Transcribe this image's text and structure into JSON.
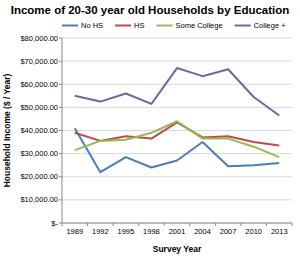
{
  "chart_data": {
    "type": "line",
    "title": "Income of 20-30 year old Households by Education",
    "x_label": "Survey Year",
    "y_label": "Household Income ($ / Year)",
    "categories": [
      "1989",
      "1992",
      "1995",
      "1998",
      "2001",
      "2004",
      "2007",
      "2010",
      "2013"
    ],
    "series": [
      {
        "name": "No HS",
        "color": "#4a7ebb",
        "values": [
          41000,
          22000,
          28500,
          24000,
          27000,
          35000,
          24500,
          25000,
          26000
        ]
      },
      {
        "name": "HS",
        "color": "#be4b48",
        "values": [
          39000,
          35500,
          37500,
          36500,
          43500,
          37000,
          37500,
          35000,
          33500
        ]
      },
      {
        "name": "Some College",
        "color": "#98b954",
        "values": [
          31500,
          35500,
          36000,
          39000,
          44000,
          36500,
          36500,
          33000,
          28500
        ]
      },
      {
        "name": "College +",
        "color": "#7d60a0",
        "values": [
          55000,
          52500,
          56000,
          51500,
          67000,
          63500,
          66500,
          54500,
          46500
        ]
      }
    ],
    "ylim": [
      0,
      80000
    ],
    "yticks": [
      {
        "value": 0,
        "label": "$-"
      },
      {
        "value": 10000,
        "label": "$10,000.00"
      },
      {
        "value": 20000,
        "label": "$20,000.00"
      },
      {
        "value": 30000,
        "label": "$30,000.00"
      },
      {
        "value": 40000,
        "label": "$40,000.00"
      },
      {
        "value": 50000,
        "label": "$50,000.00"
      },
      {
        "value": 60000,
        "label": "$60,000.00"
      },
      {
        "value": 70000,
        "label": "$70,000.00"
      },
      {
        "value": 80000,
        "label": "$80,000.00"
      }
    ],
    "grid": true,
    "legend": "top"
  }
}
